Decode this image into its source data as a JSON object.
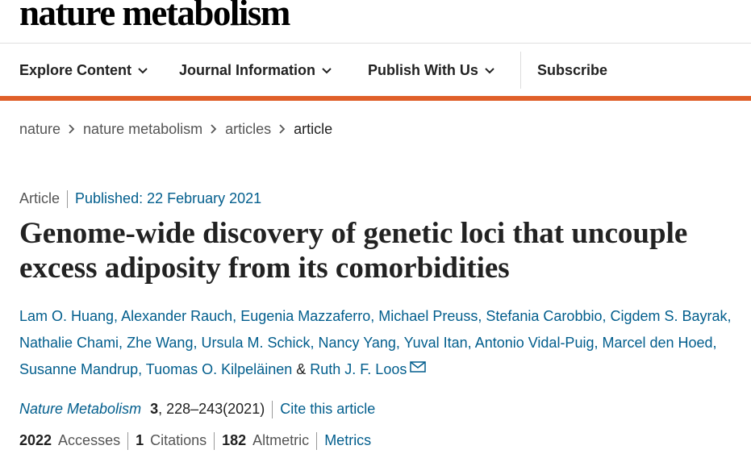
{
  "header": {
    "logo": "nature metabolism",
    "nav": [
      "Explore Content",
      "Journal Information",
      "Publish With Us",
      "Subscribe"
    ]
  },
  "breadcrumbs": [
    "nature",
    "nature metabolism",
    "articles",
    "article"
  ],
  "article": {
    "type": "Article",
    "published": "Published: 22 February 2021",
    "title": "Genome-wide discovery of genetic loci that uncouple excess adiposity from its comorbidities",
    "authors": [
      "Lam O. Huang,",
      "Alexander Rauch,",
      "Eugenia Mazzaferro,",
      "Michael Preuss,",
      "Stefania Carobbio,",
      "Cigdem S. Bayrak,",
      "Nathalie Chami,",
      "Zhe Wang,",
      "Ursula M. Schick,",
      "Nancy Yang,",
      "Yuval Itan,",
      "Antonio Vidal-Puig,",
      "Marcel den Hoed,",
      "Susanne Mandrup,",
      "Tuomas O. Kilpeläinen"
    ],
    "conjunction": "&",
    "last_author": "Ruth J. F. Loos",
    "journal": "Nature Metabolism",
    "volume": "3",
    "pages_year": ", 228–243(2021)",
    "cite_link": "Cite this article",
    "metrics": [
      {
        "value": 2022,
        "label": "Accesses"
      },
      {
        "value": 1,
        "label": "Citations"
      },
      {
        "value": 182,
        "label": "Altmetric"
      }
    ],
    "metrics_link": "Metrics"
  }
}
